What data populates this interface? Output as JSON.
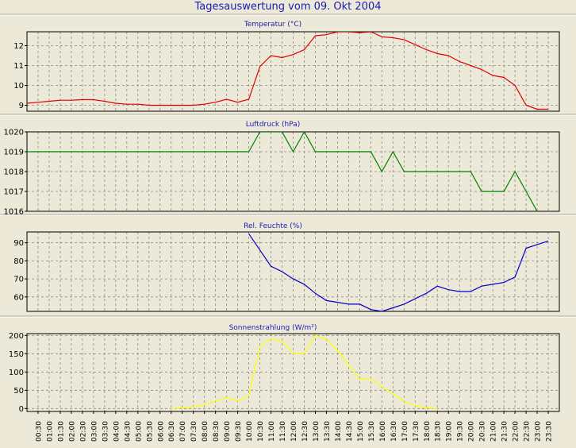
{
  "window": {
    "title": "Tagesauswertung vom 09. Okt 2004"
  },
  "chart_data": [
    {
      "type": "line",
      "title": "Temperatur (°C)",
      "ylim": [
        8.7,
        12.7
      ],
      "yticks": [
        9,
        10,
        11,
        12
      ],
      "grid": true,
      "color": "#e00000",
      "points": [
        [
          "00:00",
          9.1
        ],
        [
          "00:30",
          9.15
        ],
        [
          "01:00",
          9.2
        ],
        [
          "01:30",
          9.25
        ],
        [
          "02:00",
          9.25
        ],
        [
          "02:30",
          9.28
        ],
        [
          "03:00",
          9.28
        ],
        [
          "03:30",
          9.2
        ],
        [
          "04:00",
          9.1
        ],
        [
          "04:30",
          9.05
        ],
        [
          "05:00",
          9.05
        ],
        [
          "05:30",
          9.0
        ],
        [
          "06:00",
          9.0
        ],
        [
          "06:30",
          9.0
        ],
        [
          "07:00",
          9.0
        ],
        [
          "07:30",
          9.0
        ],
        [
          "08:00",
          9.05
        ],
        [
          "08:30",
          9.15
        ],
        [
          "09:00",
          9.3
        ],
        [
          "09:30",
          9.15
        ],
        [
          "10:00",
          9.3
        ],
        [
          "10:30",
          10.95
        ],
        [
          "11:00",
          11.5
        ],
        [
          "11:30",
          11.4
        ],
        [
          "12:00",
          11.55
        ],
        [
          "12:30",
          11.8
        ],
        [
          "13:00",
          12.5
        ],
        [
          "13:30",
          12.55
        ],
        [
          "14:00",
          12.7
        ],
        [
          "14:30",
          12.7
        ],
        [
          "15:00",
          12.65
        ],
        [
          "15:30",
          12.7
        ],
        [
          "16:00",
          12.45
        ],
        [
          "16:30",
          12.4
        ],
        [
          "17:00",
          12.3
        ],
        [
          "17:30",
          12.05
        ],
        [
          "18:00",
          11.8
        ],
        [
          "18:30",
          11.6
        ],
        [
          "19:00",
          11.5
        ],
        [
          "19:30",
          11.2
        ],
        [
          "20:00",
          11.0
        ],
        [
          "20:30",
          10.8
        ],
        [
          "21:00",
          10.5
        ],
        [
          "21:30",
          10.4
        ],
        [
          "22:00",
          10.0
        ],
        [
          "22:30",
          9.0
        ],
        [
          "23:00",
          8.8
        ],
        [
          "23:30",
          8.8
        ]
      ]
    },
    {
      "type": "line",
      "title": "Luftdruck (hPa)",
      "ylim": [
        1016,
        1020
      ],
      "yticks": [
        1016,
        1017,
        1018,
        1019,
        1020
      ],
      "grid": true,
      "color": "#008000",
      "points": [
        [
          "00:00",
          1019
        ],
        [
          "10:00",
          1019
        ],
        [
          "10:30",
          1020
        ],
        [
          "11:30",
          1020
        ],
        [
          "12:00",
          1019
        ],
        [
          "12:30",
          1020
        ],
        [
          "13:00",
          1019
        ],
        [
          "15:30",
          1019
        ],
        [
          "16:00",
          1018
        ],
        [
          "16:30",
          1019
        ],
        [
          "17:00",
          1018
        ],
        [
          "20:00",
          1018
        ],
        [
          "20:30",
          1017
        ],
        [
          "21:30",
          1017
        ],
        [
          "22:00",
          1018
        ],
        [
          "22:30",
          1017
        ],
        [
          "23:00",
          1016
        ]
      ]
    },
    {
      "type": "line",
      "title": "Rel. Feuchte (%)",
      "ylim": [
        52,
        96
      ],
      "yticks": [
        60,
        70,
        80,
        90
      ],
      "grid": true,
      "color": "#0000c8",
      "points": [
        [
          "10:00",
          95
        ],
        [
          "11:00",
          77
        ],
        [
          "11:30",
          74
        ],
        [
          "12:00",
          70
        ],
        [
          "12:30",
          67
        ],
        [
          "13:00",
          62
        ],
        [
          "13:30",
          58
        ],
        [
          "14:00",
          57
        ],
        [
          "14:30",
          56
        ],
        [
          "15:00",
          56
        ],
        [
          "15:30",
          53
        ],
        [
          "16:00",
          52
        ],
        [
          "16:30",
          54
        ],
        [
          "17:00",
          56
        ],
        [
          "17:30",
          59
        ],
        [
          "18:00",
          62
        ],
        [
          "18:30",
          66
        ],
        [
          "19:00",
          64
        ],
        [
          "19:30",
          63
        ],
        [
          "20:00",
          63
        ],
        [
          "20:30",
          66
        ],
        [
          "21:00",
          67
        ],
        [
          "21:30",
          68
        ],
        [
          "22:00",
          71
        ],
        [
          "22:30",
          87
        ],
        [
          "23:00",
          89
        ],
        [
          "23:30",
          91
        ]
      ]
    },
    {
      "type": "line",
      "title": "Sonnenstrahlung (W/m²)",
      "ylim": [
        -8,
        205
      ],
      "yticks": [
        0,
        50,
        100,
        150,
        200
      ],
      "grid": true,
      "color": "#ffff00",
      "points": [
        [
          "06:30",
          0
        ],
        [
          "07:00",
          2
        ],
        [
          "07:30",
          5
        ],
        [
          "08:00",
          10
        ],
        [
          "08:30",
          20
        ],
        [
          "09:00",
          30
        ],
        [
          "09:30",
          20
        ],
        [
          "10:00",
          35
        ],
        [
          "10:30",
          170
        ],
        [
          "11:00",
          190
        ],
        [
          "11:30",
          185
        ],
        [
          "12:00",
          150
        ],
        [
          "12:30",
          150
        ],
        [
          "13:00",
          200
        ],
        [
          "13:30",
          190
        ],
        [
          "14:00",
          160
        ],
        [
          "14:30",
          120
        ],
        [
          "15:00",
          80
        ],
        [
          "15:30",
          82
        ],
        [
          "16:00",
          60
        ],
        [
          "16:30",
          40
        ],
        [
          "17:00",
          20
        ],
        [
          "17:30",
          8
        ],
        [
          "18:00",
          2
        ],
        [
          "18:30",
          0
        ]
      ]
    }
  ],
  "x_axis": {
    "ticks": [
      "00:30",
      "01:00",
      "01:30",
      "02:00",
      "02:30",
      "03:00",
      "03:30",
      "04:00",
      "04:30",
      "05:00",
      "05:30",
      "06:00",
      "06:30",
      "07:00",
      "07:30",
      "08:00",
      "08:30",
      "09:00",
      "09:30",
      "10:00",
      "10:30",
      "11:00",
      "11:30",
      "12:00",
      "12:30",
      "13:00",
      "13:30",
      "14:00",
      "14:30",
      "15:00",
      "15:30",
      "16:00",
      "16:30",
      "17:00",
      "17:30",
      "18:00",
      "18:30",
      "19:00",
      "19:30",
      "20:00",
      "20:30",
      "21:00",
      "21:30",
      "22:00",
      "22:30",
      "23:00",
      "23:30"
    ]
  }
}
